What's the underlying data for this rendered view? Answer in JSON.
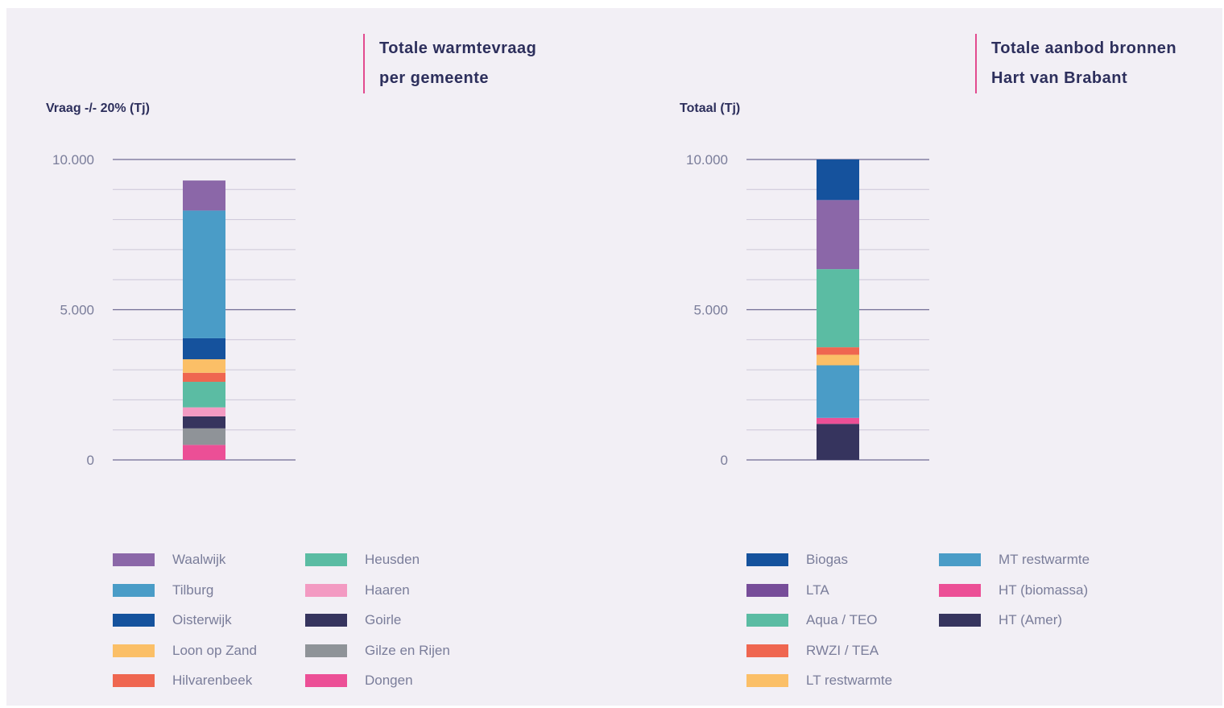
{
  "chart_data": [
    {
      "type": "bar",
      "stacked": true,
      "title": [
        "Totale warmtevraag",
        "per gemeente"
      ],
      "ylabel": "Vraag -/- 20% (Tj)",
      "xlabel": "",
      "ylim": [
        0,
        10000
      ],
      "yticks": [
        0,
        5000,
        10000
      ],
      "ytick_labels": [
        "0",
        "5.000",
        "10.000"
      ],
      "minor_gridlines": true,
      "legend_position": "bottom",
      "series": [
        {
          "name": "Dongen",
          "value": 500,
          "color": "#ec4f96"
        },
        {
          "name": "Gilze en Rijen",
          "value": 550,
          "color": "#8f9398"
        },
        {
          "name": "Goirle",
          "value": 400,
          "color": "#36345e"
        },
        {
          "name": "Haaren",
          "value": 300,
          "color": "#f39ac2"
        },
        {
          "name": "Heusden",
          "value": 850,
          "color": "#5bbca3"
        },
        {
          "name": "Hilvarenbeek",
          "value": 300,
          "color": "#ef6650"
        },
        {
          "name": "Loon op Zand",
          "value": 450,
          "color": "#fbbf67"
        },
        {
          "name": "Oisterwijk",
          "value": 700,
          "color": "#15529d"
        },
        {
          "name": "Tilburg",
          "value": 4250,
          "color": "#4a9cc7"
        },
        {
          "name": "Waalwijk",
          "value": 1000,
          "color": "#8b67a8"
        }
      ],
      "legend_columns": [
        [
          "Waalwijk",
          "Tilburg",
          "Oisterwijk",
          "Loon op Zand",
          "Hilvarenbeek"
        ],
        [
          "Heusden",
          "Haaren",
          "Goirle",
          "Gilze en Rijen",
          "Dongen"
        ]
      ]
    },
    {
      "type": "bar",
      "stacked": true,
      "title": [
        "Totale aanbod bronnen",
        "Hart van Brabant"
      ],
      "ylabel": "Totaal (Tj)",
      "xlabel": "",
      "ylim": [
        0,
        10000
      ],
      "yticks": [
        0,
        5000,
        10000
      ],
      "ytick_labels": [
        "0",
        "5.000",
        "10.000"
      ],
      "minor_gridlines": true,
      "legend_position": "bottom",
      "series": [
        {
          "name": "HT (Amer)",
          "value": 1200,
          "color": "#36345e"
        },
        {
          "name": "HT (biomassa)",
          "value": 200,
          "color": "#ec4f96"
        },
        {
          "name": "MT restwarmte",
          "value": 1750,
          "color": "#4a9cc7"
        },
        {
          "name": "LT restwarmte",
          "value": 350,
          "color": "#fbbf67"
        },
        {
          "name": "RWZI / TEA",
          "value": 250,
          "color": "#ef6650"
        },
        {
          "name": "Aqua / TEO",
          "value": 2600,
          "color": "#5bbca3"
        },
        {
          "name": "LTA",
          "value": 2300,
          "color": "#8b67a8"
        },
        {
          "name": "Biogas",
          "value": 1350,
          "color": "#15529d"
        }
      ],
      "legend_columns": [
        [
          "Biogas",
          "LTA",
          "Aqua / TEO",
          "RWZI / TEA",
          "LT restwarmte"
        ],
        [
          "MT restwarmte",
          "HT (biomassa)",
          "HT (Amer)"
        ]
      ],
      "legend_colors": {
        "LTA": "#774d99"
      }
    }
  ]
}
